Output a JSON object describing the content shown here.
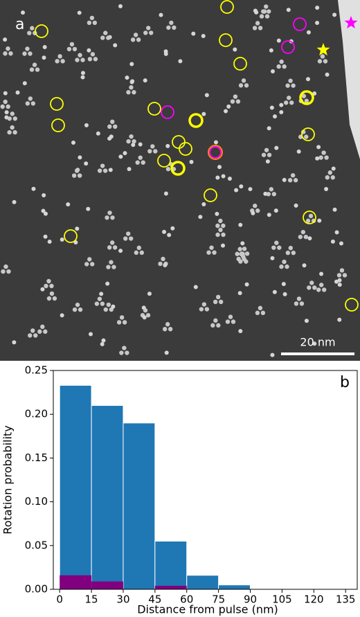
{
  "image": {
    "label": "a",
    "scale_bar": "20 nm"
  },
  "chart_data": {
    "type": "histogram",
    "label": "b",
    "xlabel": "Distance from pulse (nm)",
    "ylabel": "Rotation probability",
    "bins": [
      0,
      15,
      30,
      45,
      60,
      75,
      90
    ],
    "series": [
      {
        "color": "#1f77b4",
        "values": [
          0.233,
          0.21,
          0.19,
          0.055,
          0.016,
          0.005
        ]
      },
      {
        "color": "#800080",
        "values": [
          0.016,
          0.009,
          0,
          0.004,
          0,
          0
        ]
      }
    ],
    "xlim": [
      -3,
      140.5
    ],
    "ylim": [
      0,
      0.25
    ],
    "xticks": [
      0,
      15,
      30,
      45,
      60,
      75,
      90,
      105,
      120,
      135
    ],
    "yticks": [
      {
        "value": 0,
        "label": "0.00"
      },
      {
        "value": 0.05,
        "label": "0.05"
      },
      {
        "value": 0.1,
        "label": "0.10"
      },
      {
        "value": 0.15,
        "label": "0.15"
      },
      {
        "value": 0.2,
        "label": "0.20"
      },
      {
        "value": 0.25,
        "label": "0.25"
      }
    ]
  }
}
